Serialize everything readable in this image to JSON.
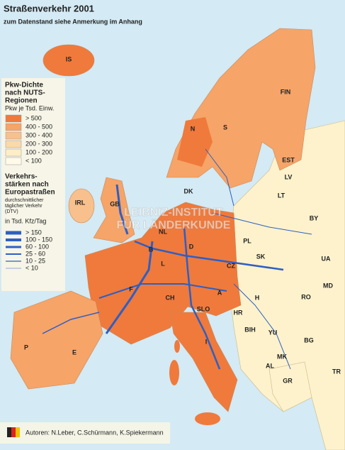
{
  "title": "Straßenverkehr 2001",
  "subtitle": "zum Datenstand siehe Anmerkung im Anhang",
  "legend_density": {
    "title_lines": [
      "Pkw-Dichte",
      "nach NUTS-",
      "Regionen"
    ],
    "unit": "Pkw je Tsd. Einw.",
    "classes": [
      "> 500",
      "400 - 500",
      "300 - 400",
      "200 - 300",
      "100 - 200",
      "< 100"
    ]
  },
  "legend_traffic": {
    "title_lines": [
      "Verkehrs-",
      "stärken nach",
      "Europastraßen"
    ],
    "note_lines": [
      "durchschnittlicher",
      "täglicher Verkehr",
      "(DTV)"
    ],
    "unit": "in Tsd. Kfz/Tag",
    "classes": [
      "> 150",
      "100 - 150",
      "60 - 100",
      "25 - 60",
      "10 - 25",
      "< 10"
    ]
  },
  "country_labels": [
    "IS",
    "FIN",
    "N",
    "S",
    "EST",
    "LV",
    "LT",
    "DK",
    "IRL",
    "GB",
    "NL",
    "PL",
    "BY",
    "B",
    "D",
    "L",
    "CZ",
    "UA",
    "F",
    "SK",
    "MD",
    "CH",
    "A",
    "H",
    "RO",
    "SLO",
    "HR",
    "BIH",
    "YU",
    "BG",
    "P",
    "E",
    "I",
    "MK",
    "AL",
    "TR",
    "GR"
  ],
  "watermark_lines": [
    "LEIBNIZ-INSTITUT",
    "FÜR LÄNDERKUNDE"
  ],
  "credits": "Autoren: N.Leber, C.Schürmann, K.Spiekermann"
}
